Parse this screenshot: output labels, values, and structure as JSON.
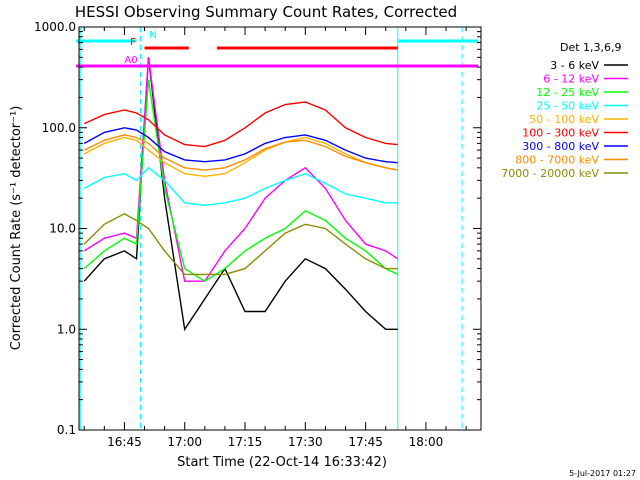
{
  "chart_data": {
    "type": "line",
    "title": "HESSI Observing Summary Count Rates, Corrected",
    "xlabel": "Start Time (22-Oct-14 16:33:42)",
    "ylabel": "Corrected Count Rate (s⁻¹ detector⁻¹)",
    "y_scale": "log",
    "ylim": [
      0.1,
      1000
    ],
    "y_ticks": [
      {
        "value": 0.1,
        "label": "0.1"
      },
      {
        "value": 1,
        "label": "1.0"
      },
      {
        "value": 10,
        "label": "10.0"
      },
      {
        "value": 100,
        "label": "100.0"
      },
      {
        "value": 1000,
        "label": "1000.0"
      }
    ],
    "x_range": [
      "16:33:42",
      "18:13:42"
    ],
    "x_ticks": [
      "16:45",
      "17:00",
      "17:15",
      "17:30",
      "17:45",
      "18:00"
    ],
    "legend_title": "Det 1,3,6,9",
    "legend_position": "right",
    "series": [
      {
        "name": "3 - 6 keV",
        "color": "#000000",
        "x": [
          "16:35",
          "16:40",
          "16:45",
          "16:48",
          "16:51",
          "16:55",
          "17:00",
          "17:05",
          "17:10",
          "17:15",
          "17:20",
          "17:25",
          "17:30",
          "17:35",
          "17:40",
          "17:45",
          "17:50",
          "17:53"
        ],
        "values": [
          3,
          5,
          6,
          5,
          500,
          20,
          1,
          2,
          4,
          1.5,
          1.5,
          3,
          5,
          4,
          2.5,
          1.5,
          1,
          1
        ]
      },
      {
        "name": "6 - 12 keV",
        "color": "#ff00ff",
        "x": [
          "16:35",
          "16:40",
          "16:45",
          "16:48",
          "16:51",
          "16:55",
          "17:00",
          "17:05",
          "17:10",
          "17:15",
          "17:20",
          "17:25",
          "17:30",
          "17:35",
          "17:40",
          "17:45",
          "17:50",
          "17:53"
        ],
        "values": [
          6,
          8,
          9,
          8,
          500,
          30,
          3,
          3,
          6,
          10,
          20,
          30,
          40,
          25,
          12,
          7,
          6,
          5
        ]
      },
      {
        "name": "12 - 25 keV",
        "color": "#00ff00",
        "x": [
          "16:35",
          "16:40",
          "16:45",
          "16:48",
          "16:51",
          "16:55",
          "17:00",
          "17:05",
          "17:10",
          "17:15",
          "17:20",
          "17:25",
          "17:30",
          "17:35",
          "17:40",
          "17:45",
          "17:50",
          "17:53"
        ],
        "values": [
          4,
          6,
          8,
          7,
          300,
          25,
          4,
          3,
          4,
          6,
          8,
          10,
          15,
          12,
          8,
          6,
          4,
          3.5
        ]
      },
      {
        "name": "25 - 50 keV",
        "color": "#00ffff",
        "x": [
          "16:35",
          "16:40",
          "16:45",
          "16:48",
          "16:51",
          "16:55",
          "17:00",
          "17:05",
          "17:10",
          "17:15",
          "17:20",
          "17:25",
          "17:30",
          "17:35",
          "17:40",
          "17:45",
          "17:50",
          "17:53"
        ],
        "values": [
          25,
          32,
          35,
          30,
          40,
          30,
          18,
          17,
          18,
          20,
          25,
          30,
          35,
          28,
          22,
          20,
          18,
          18
        ]
      },
      {
        "name": "50 - 100 keV",
        "color": "#ffb000",
        "x": [
          "16:35",
          "16:40",
          "16:45",
          "16:48",
          "16:51",
          "16:55",
          "17:00",
          "17:05",
          "17:10",
          "17:15",
          "17:20",
          "17:25",
          "17:30",
          "17:35",
          "17:40",
          "17:45",
          "17:50",
          "17:53"
        ],
        "values": [
          55,
          70,
          80,
          75,
          60,
          45,
          35,
          33,
          35,
          45,
          60,
          72,
          80,
          70,
          55,
          45,
          40,
          38
        ]
      },
      {
        "name": "100 - 300 keV",
        "color": "#ff0000",
        "x": [
          "16:35",
          "16:40",
          "16:45",
          "16:48",
          "16:51",
          "16:55",
          "17:00",
          "17:05",
          "17:10",
          "17:15",
          "17:20",
          "17:25",
          "17:30",
          "17:35",
          "17:40",
          "17:45",
          "17:50",
          "17:53"
        ],
        "values": [
          110,
          135,
          150,
          140,
          120,
          85,
          68,
          65,
          75,
          100,
          140,
          170,
          180,
          150,
          100,
          80,
          70,
          68
        ]
      },
      {
        "name": "300 - 800 keV",
        "color": "#0000ff",
        "x": [
          "16:35",
          "16:40",
          "16:45",
          "16:48",
          "16:51",
          "16:55",
          "17:00",
          "17:05",
          "17:10",
          "17:15",
          "17:20",
          "17:25",
          "17:30",
          "17:35",
          "17:40",
          "17:45",
          "17:50",
          "17:53"
        ],
        "values": [
          70,
          90,
          100,
          95,
          80,
          58,
          48,
          46,
          48,
          55,
          70,
          80,
          85,
          75,
          60,
          50,
          46,
          45
        ]
      },
      {
        "name": "800 - 7000 keV",
        "color": "#ff8c00",
        "x": [
          "16:35",
          "16:40",
          "16:45",
          "16:48",
          "16:51",
          "16:55",
          "17:00",
          "17:05",
          "17:10",
          "17:15",
          "17:20",
          "17:25",
          "17:30",
          "17:35",
          "17:40",
          "17:45",
          "17:50",
          "17:53"
        ],
        "values": [
          60,
          75,
          85,
          80,
          70,
          50,
          40,
          38,
          40,
          48,
          62,
          72,
          75,
          65,
          52,
          45,
          40,
          38
        ]
      },
      {
        "name": "7000 - 20000 keV",
        "color": "#8b8b00",
        "x": [
          "16:35",
          "16:40",
          "16:45",
          "16:48",
          "16:51",
          "16:55",
          "17:00",
          "17:05",
          "17:10",
          "17:15",
          "17:20",
          "17:25",
          "17:30",
          "17:35",
          "17:40",
          "17:45",
          "17:50",
          "17:53"
        ],
        "values": [
          7,
          11,
          14,
          12,
          10,
          6,
          3.5,
          3.5,
          3.5,
          4,
          6,
          9,
          11,
          10,
          7,
          5,
          4,
          4
        ]
      }
    ],
    "flag_bars": [
      {
        "label": "N",
        "color": "#00ffff",
        "segments": [
          [
            "16:33",
            "16:48"
          ],
          [
            "17:53",
            "18:13"
          ]
        ]
      },
      {
        "label": "F",
        "color": "#ff0000",
        "segments": [
          [
            "16:50",
            "17:01"
          ],
          [
            "17:08",
            "17:53"
          ]
        ]
      },
      {
        "label": "A0",
        "color": "#ff00ff",
        "segments": [
          [
            "16:33",
            "18:13"
          ]
        ]
      }
    ],
    "vertical_lines": [
      {
        "time": "16:34",
        "color": "#00ffff",
        "style": "solid"
      },
      {
        "time": "16:49",
        "color": "#00ffff",
        "style": "dashed"
      },
      {
        "time": "17:53",
        "color": "#00ffff",
        "style": "solid"
      },
      {
        "time": "18:09",
        "color": "#00ffff",
        "style": "dashed"
      }
    ],
    "grid": false
  },
  "footer": {
    "date_stamp": "5-Jul-2017 01:27"
  }
}
